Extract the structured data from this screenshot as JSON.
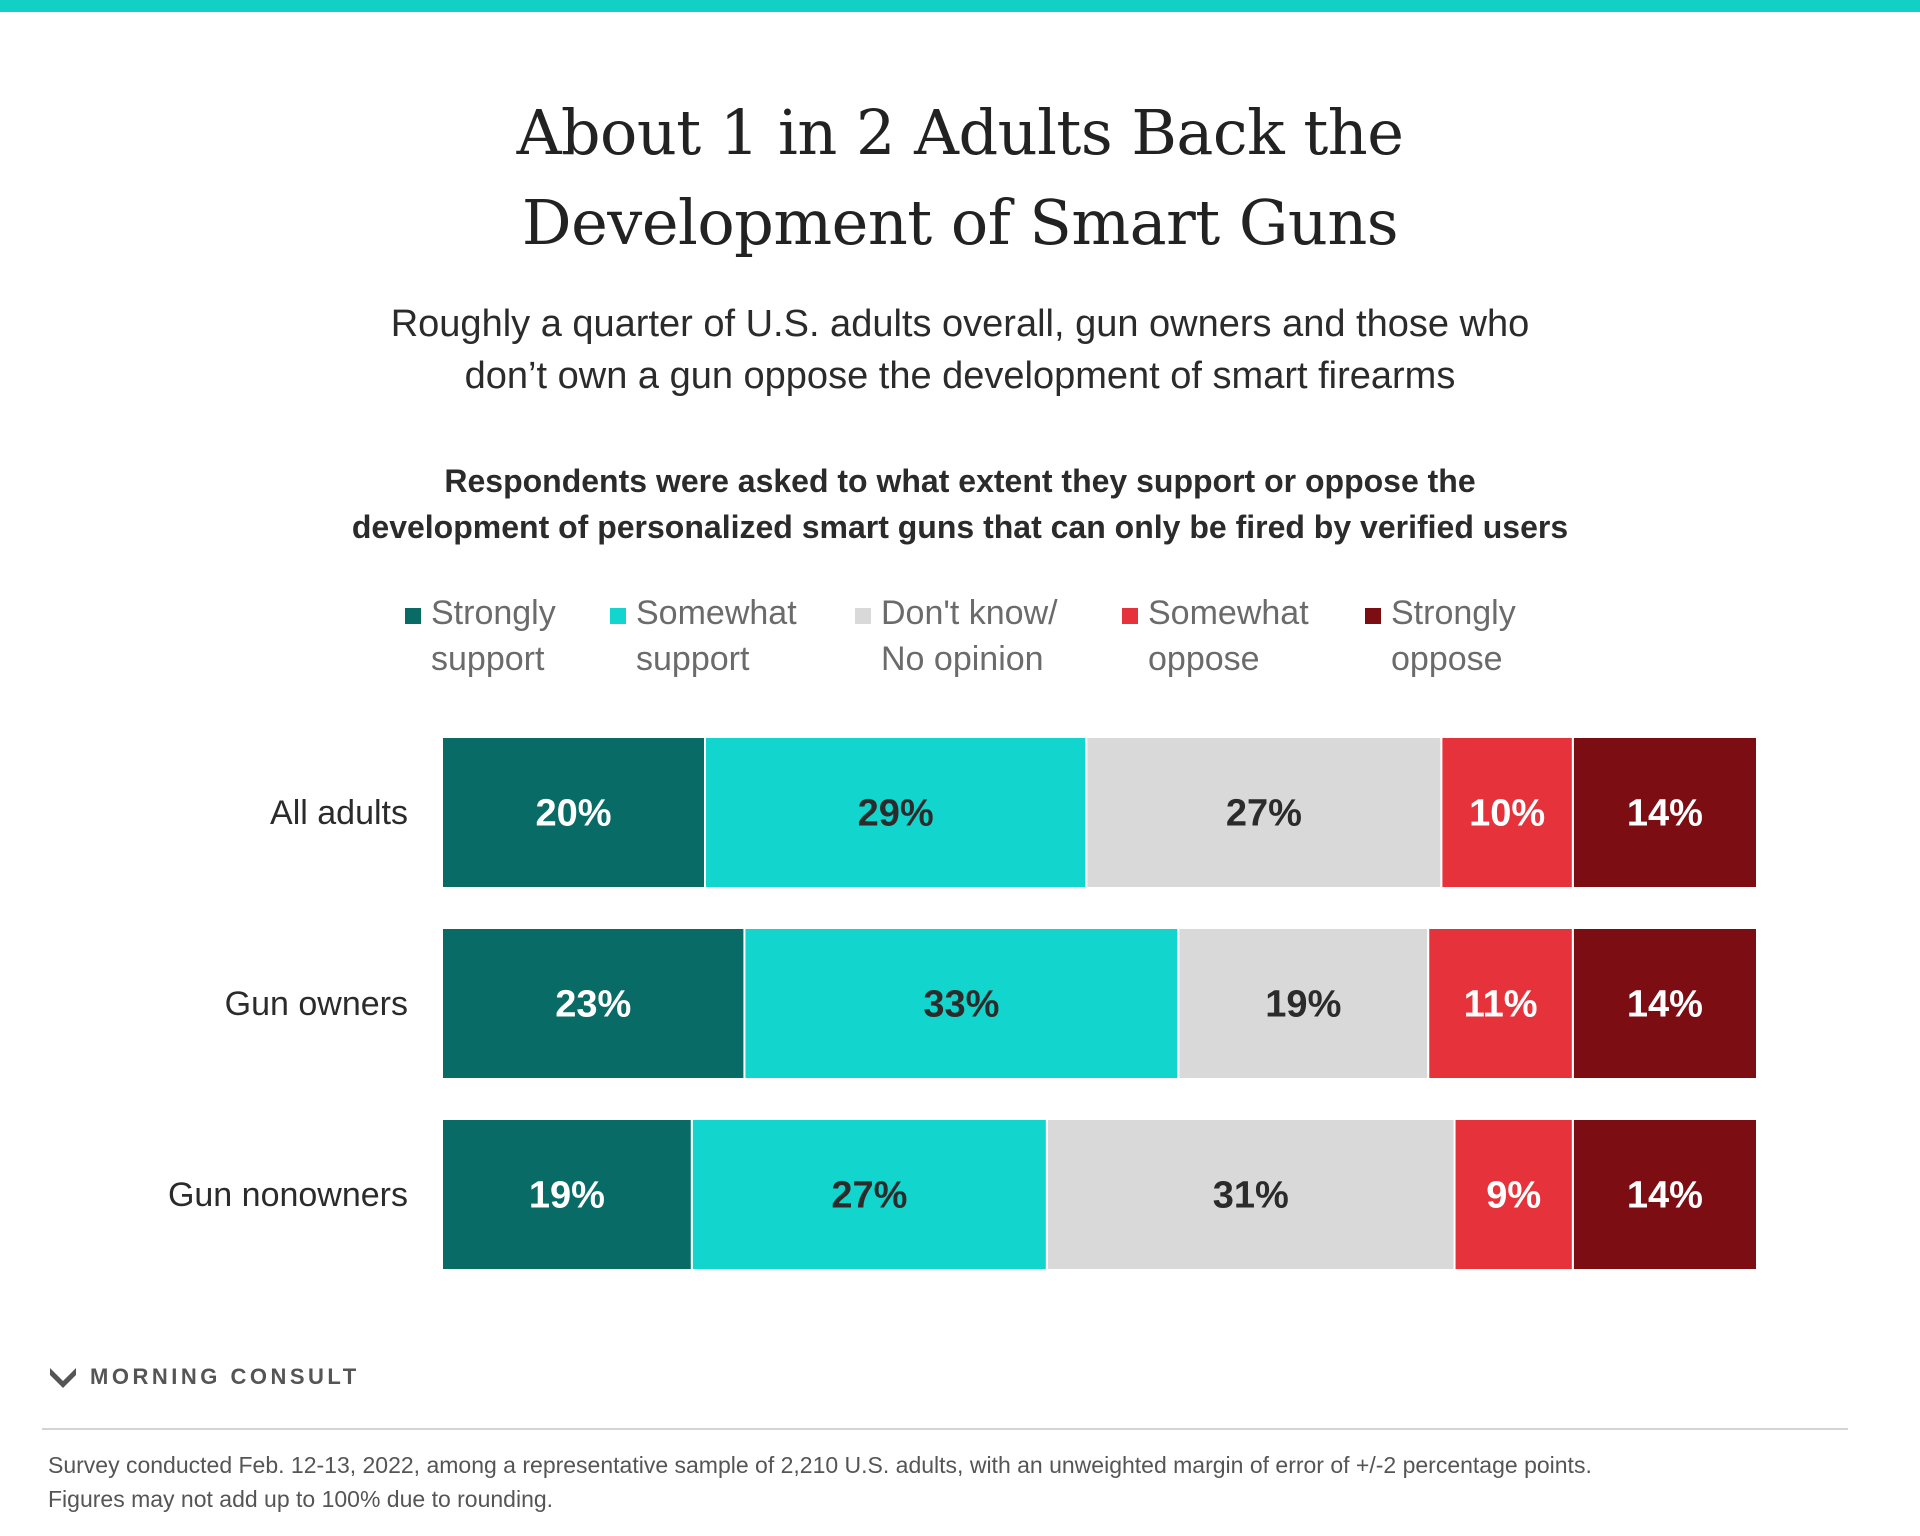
{
  "title_line1": "About 1 in 2 Adults Back the",
  "title_line2": "Development of Smart Guns",
  "subtitle_line1": "Roughly a quarter of U.S. adults overall, gun owners and those who",
  "subtitle_line2": "don’t own a gun oppose the development of smart firearms",
  "question_line1": "Respondents were asked to what extent they support or oppose the",
  "question_line2": "development of personalized smart guns that can only be fired by verified users",
  "brand": "MORNING CONSULT",
  "brand_icon": "morning-consult-logo-icon",
  "footnote_line1": "Survey conducted Feb. 12-13, 2022, among a representative sample of 2,210 U.S. adults, with an unweighted margin of error of +/-2 percentage points.",
  "footnote_line2": "Figures may not add up to 100% due to rounding.",
  "colors": {
    "accent": "#12d0c6"
  },
  "chart_data": {
    "type": "bar",
    "orientation": "horizontal",
    "stacked": true,
    "categories": [
      "All adults",
      "Gun owners",
      "Gun nonowners"
    ],
    "series": [
      {
        "name": "Strongly\nsupport",
        "color": "#086b66",
        "label_color": "#ffffff",
        "values": [
          20,
          23,
          19
        ]
      },
      {
        "name": "Somewhat\nsupport",
        "color": "#12d6cd",
        "label_color": "#2b2b2b",
        "values": [
          29,
          33,
          27
        ]
      },
      {
        "name": "Don't know/\nNo opinion",
        "color": "#d9d9d9",
        "label_color": "#2b2b2b",
        "values": [
          27,
          19,
          31
        ]
      },
      {
        "name": "Somewhat\noppose",
        "color": "#e6323a",
        "label_color": "#ffffff",
        "values": [
          10,
          11,
          9
        ]
      },
      {
        "name": "Strongly\noppose",
        "color": "#7c0d12",
        "label_color": "#ffffff",
        "values": [
          14,
          14,
          14
        ]
      }
    ],
    "value_suffix": "%",
    "legend_position": "top"
  }
}
